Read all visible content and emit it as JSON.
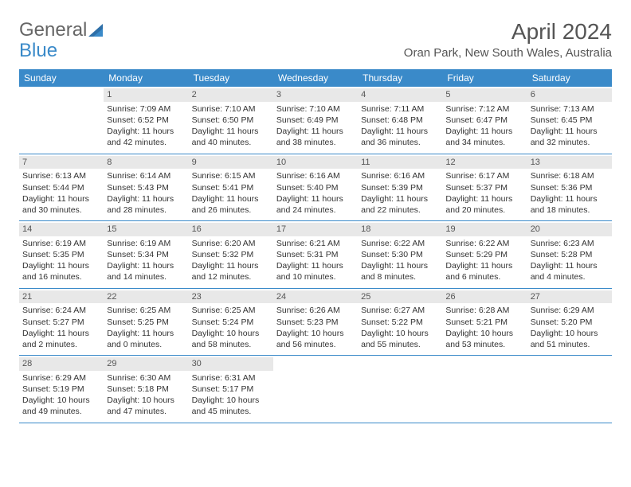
{
  "brand": {
    "word1": "General",
    "word2": "Blue"
  },
  "title": "April 2024",
  "location": "Oran Park, New South Wales, Australia",
  "colors": {
    "header_bg": "#3a8ac9",
    "band_bg": "#e8e8e8",
    "text": "#333333",
    "title_text": "#555555"
  },
  "dow": [
    "Sunday",
    "Monday",
    "Tuesday",
    "Wednesday",
    "Thursday",
    "Friday",
    "Saturday"
  ],
  "weeks": [
    [
      {
        "n": "",
        "sr": "",
        "ss": "",
        "dl": ""
      },
      {
        "n": "1",
        "sr": "Sunrise: 7:09 AM",
        "ss": "Sunset: 6:52 PM",
        "dl": "Daylight: 11 hours and 42 minutes."
      },
      {
        "n": "2",
        "sr": "Sunrise: 7:10 AM",
        "ss": "Sunset: 6:50 PM",
        "dl": "Daylight: 11 hours and 40 minutes."
      },
      {
        "n": "3",
        "sr": "Sunrise: 7:10 AM",
        "ss": "Sunset: 6:49 PM",
        "dl": "Daylight: 11 hours and 38 minutes."
      },
      {
        "n": "4",
        "sr": "Sunrise: 7:11 AM",
        "ss": "Sunset: 6:48 PM",
        "dl": "Daylight: 11 hours and 36 minutes."
      },
      {
        "n": "5",
        "sr": "Sunrise: 7:12 AM",
        "ss": "Sunset: 6:47 PM",
        "dl": "Daylight: 11 hours and 34 minutes."
      },
      {
        "n": "6",
        "sr": "Sunrise: 7:13 AM",
        "ss": "Sunset: 6:45 PM",
        "dl": "Daylight: 11 hours and 32 minutes."
      }
    ],
    [
      {
        "n": "7",
        "sr": "Sunrise: 6:13 AM",
        "ss": "Sunset: 5:44 PM",
        "dl": "Daylight: 11 hours and 30 minutes."
      },
      {
        "n": "8",
        "sr": "Sunrise: 6:14 AM",
        "ss": "Sunset: 5:43 PM",
        "dl": "Daylight: 11 hours and 28 minutes."
      },
      {
        "n": "9",
        "sr": "Sunrise: 6:15 AM",
        "ss": "Sunset: 5:41 PM",
        "dl": "Daylight: 11 hours and 26 minutes."
      },
      {
        "n": "10",
        "sr": "Sunrise: 6:16 AM",
        "ss": "Sunset: 5:40 PM",
        "dl": "Daylight: 11 hours and 24 minutes."
      },
      {
        "n": "11",
        "sr": "Sunrise: 6:16 AM",
        "ss": "Sunset: 5:39 PM",
        "dl": "Daylight: 11 hours and 22 minutes."
      },
      {
        "n": "12",
        "sr": "Sunrise: 6:17 AM",
        "ss": "Sunset: 5:37 PM",
        "dl": "Daylight: 11 hours and 20 minutes."
      },
      {
        "n": "13",
        "sr": "Sunrise: 6:18 AM",
        "ss": "Sunset: 5:36 PM",
        "dl": "Daylight: 11 hours and 18 minutes."
      }
    ],
    [
      {
        "n": "14",
        "sr": "Sunrise: 6:19 AM",
        "ss": "Sunset: 5:35 PM",
        "dl": "Daylight: 11 hours and 16 minutes."
      },
      {
        "n": "15",
        "sr": "Sunrise: 6:19 AM",
        "ss": "Sunset: 5:34 PM",
        "dl": "Daylight: 11 hours and 14 minutes."
      },
      {
        "n": "16",
        "sr": "Sunrise: 6:20 AM",
        "ss": "Sunset: 5:32 PM",
        "dl": "Daylight: 11 hours and 12 minutes."
      },
      {
        "n": "17",
        "sr": "Sunrise: 6:21 AM",
        "ss": "Sunset: 5:31 PM",
        "dl": "Daylight: 11 hours and 10 minutes."
      },
      {
        "n": "18",
        "sr": "Sunrise: 6:22 AM",
        "ss": "Sunset: 5:30 PM",
        "dl": "Daylight: 11 hours and 8 minutes."
      },
      {
        "n": "19",
        "sr": "Sunrise: 6:22 AM",
        "ss": "Sunset: 5:29 PM",
        "dl": "Daylight: 11 hours and 6 minutes."
      },
      {
        "n": "20",
        "sr": "Sunrise: 6:23 AM",
        "ss": "Sunset: 5:28 PM",
        "dl": "Daylight: 11 hours and 4 minutes."
      }
    ],
    [
      {
        "n": "21",
        "sr": "Sunrise: 6:24 AM",
        "ss": "Sunset: 5:27 PM",
        "dl": "Daylight: 11 hours and 2 minutes."
      },
      {
        "n": "22",
        "sr": "Sunrise: 6:25 AM",
        "ss": "Sunset: 5:25 PM",
        "dl": "Daylight: 11 hours and 0 minutes."
      },
      {
        "n": "23",
        "sr": "Sunrise: 6:25 AM",
        "ss": "Sunset: 5:24 PM",
        "dl": "Daylight: 10 hours and 58 minutes."
      },
      {
        "n": "24",
        "sr": "Sunrise: 6:26 AM",
        "ss": "Sunset: 5:23 PM",
        "dl": "Daylight: 10 hours and 56 minutes."
      },
      {
        "n": "25",
        "sr": "Sunrise: 6:27 AM",
        "ss": "Sunset: 5:22 PM",
        "dl": "Daylight: 10 hours and 55 minutes."
      },
      {
        "n": "26",
        "sr": "Sunrise: 6:28 AM",
        "ss": "Sunset: 5:21 PM",
        "dl": "Daylight: 10 hours and 53 minutes."
      },
      {
        "n": "27",
        "sr": "Sunrise: 6:29 AM",
        "ss": "Sunset: 5:20 PM",
        "dl": "Daylight: 10 hours and 51 minutes."
      }
    ],
    [
      {
        "n": "28",
        "sr": "Sunrise: 6:29 AM",
        "ss": "Sunset: 5:19 PM",
        "dl": "Daylight: 10 hours and 49 minutes."
      },
      {
        "n": "29",
        "sr": "Sunrise: 6:30 AM",
        "ss": "Sunset: 5:18 PM",
        "dl": "Daylight: 10 hours and 47 minutes."
      },
      {
        "n": "30",
        "sr": "Sunrise: 6:31 AM",
        "ss": "Sunset: 5:17 PM",
        "dl": "Daylight: 10 hours and 45 minutes."
      },
      {
        "n": "",
        "sr": "",
        "ss": "",
        "dl": ""
      },
      {
        "n": "",
        "sr": "",
        "ss": "",
        "dl": ""
      },
      {
        "n": "",
        "sr": "",
        "ss": "",
        "dl": ""
      },
      {
        "n": "",
        "sr": "",
        "ss": "",
        "dl": ""
      }
    ]
  ]
}
